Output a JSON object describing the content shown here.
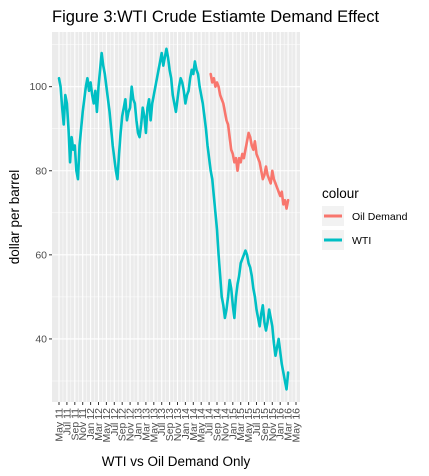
{
  "chart_data": {
    "type": "line",
    "title": "Figure 3:WTI Crude Estiamte Demand Effect",
    "xlabel": "WTI vs Oil Demand Only",
    "ylabel": "dollar per barrel",
    "ylim": [
      25,
      113
    ],
    "yticks": [
      40,
      60,
      80,
      100
    ],
    "grid": true,
    "legend_position": "right",
    "x_tick_labels": [
      "May 11",
      "Jul 11",
      "Sep 11",
      "Nov 11",
      "Jan 12",
      "Mar 12",
      "May 12",
      "Jul 12",
      "Sep 12",
      "Nov 12",
      "Jan 13",
      "Mar 13",
      "May 13",
      "Jul 13",
      "Sep 13",
      "Nov 13",
      "Jan 14",
      "Mar 14",
      "May 14",
      "Jul 14",
      "Sep 14",
      "Nov 14",
      "Jan 15",
      "Mar 15",
      "May 15",
      "Jul 15",
      "Sep 15",
      "Nov 15",
      "Jan 16",
      "Mar 16",
      "May 16"
    ],
    "legend": {
      "title": "colour",
      "entries": [
        {
          "label": "Oil Demand",
          "color": "#F8766D"
        },
        {
          "label": "WTI",
          "color": "#00BFC4"
        }
      ]
    },
    "series": [
      {
        "name": "WTI",
        "color": "#00BFC4",
        "x_index": [
          0,
          0.2,
          0.4,
          0.6,
          0.8,
          1.0,
          1.2,
          1.4,
          1.6,
          1.8,
          2.0,
          2.2,
          2.4,
          2.6,
          2.8,
          3.0,
          3.2,
          3.4,
          3.6,
          3.8,
          4.0,
          4.2,
          4.4,
          4.6,
          4.8,
          5.0,
          5.2,
          5.4,
          5.6,
          5.8,
          6.0,
          6.2,
          6.4,
          6.6,
          6.8,
          7.0,
          7.2,
          7.4,
          7.6,
          7.8,
          8.0,
          8.2,
          8.4,
          8.6,
          8.8,
          9.0,
          9.2,
          9.4,
          9.6,
          9.8,
          10.0,
          10.2,
          10.4,
          10.6,
          10.8,
          11.0,
          11.2,
          11.4,
          11.6,
          11.8,
          12.0,
          12.2,
          12.4,
          12.6,
          12.8,
          13.0,
          13.2,
          13.4,
          13.6,
          13.8,
          14.0,
          14.2,
          14.4,
          14.6,
          14.8,
          15.0,
          15.2,
          15.4,
          15.6,
          15.8,
          16.0,
          16.2,
          16.4,
          16.6,
          16.8,
          17.0,
          17.2,
          17.4,
          17.6,
          17.8,
          18.0,
          18.2,
          18.4,
          18.6,
          18.8,
          19.0,
          19.2,
          19.4,
          19.6,
          19.8,
          20.0,
          20.2,
          20.4,
          20.6,
          20.8,
          21.0,
          21.2,
          21.4,
          21.6,
          21.8,
          22.0,
          22.2,
          22.4,
          22.6,
          22.8,
          23.0,
          23.2,
          23.4,
          23.6,
          23.8,
          24.0,
          24.2,
          24.4,
          24.6,
          24.8,
          25.0,
          25.2,
          25.4,
          25.6,
          25.8,
          26.0,
          26.2,
          26.4,
          26.6,
          26.8,
          27.0,
          27.2,
          27.4,
          27.6,
          27.8,
          28.0,
          28.2,
          28.4,
          28.6,
          28.8,
          29.0
        ],
        "values": [
          102,
          100,
          95,
          91,
          98,
          96,
          90,
          82,
          88,
          85,
          86,
          80,
          78,
          86,
          90,
          94,
          97,
          100,
          102,
          99,
          101,
          98,
          96,
          99,
          94,
          100,
          104,
          108,
          105,
          103,
          100,
          97,
          94,
          90,
          86,
          83,
          80,
          78,
          84,
          89,
          93,
          95,
          97,
          92,
          94,
          95,
          100,
          97,
          96,
          92,
          89,
          88,
          91,
          95,
          93,
          89,
          95,
          97,
          92,
          96,
          98,
          100,
          102,
          104,
          106,
          108,
          105,
          107,
          109,
          107,
          104,
          102,
          98,
          96,
          94,
          97,
          100,
          102,
          101,
          99,
          96,
          98,
          99,
          102,
          104,
          103,
          106,
          104,
          103,
          100,
          98,
          96,
          93,
          90,
          86,
          83,
          80,
          78,
          74,
          70,
          66,
          60,
          55,
          50,
          48,
          45,
          47,
          50,
          54,
          52,
          48,
          45,
          50,
          53,
          55,
          58,
          59,
          60,
          61,
          60,
          58,
          57,
          55,
          52,
          50,
          47,
          45,
          43,
          46,
          48,
          44,
          42,
          44,
          47,
          45,
          43,
          39,
          36,
          38,
          40,
          37,
          34,
          32,
          30,
          28,
          32
        ]
      },
      {
        "name": "Oil Demand",
        "color": "#F8766D",
        "x_index": [
          19.2,
          19.4,
          19.6,
          19.8,
          20.0,
          20.2,
          20.4,
          20.6,
          20.8,
          21.0,
          21.2,
          21.4,
          21.6,
          21.8,
          22.0,
          22.2,
          22.4,
          22.6,
          22.8,
          23.0,
          23.2,
          23.4,
          23.6,
          23.8,
          24.0,
          24.2,
          24.4,
          24.6,
          24.8,
          25.0,
          25.2,
          25.4,
          25.6,
          25.8,
          26.0,
          26.2,
          26.4,
          26.6,
          26.8,
          27.0,
          27.2,
          27.4,
          27.6,
          27.8,
          28.0,
          28.2,
          28.4,
          28.6,
          28.8,
          29.0
        ],
        "values": [
          103,
          101,
          102,
          100,
          101,
          100,
          98,
          97,
          96,
          94,
          92,
          91,
          88,
          85,
          84,
          82,
          83,
          80,
          83,
          82,
          84,
          83,
          85,
          87,
          89,
          88,
          86,
          85,
          87,
          84,
          83,
          82,
          80,
          78,
          79,
          81,
          79,
          78,
          77,
          80,
          78,
          77,
          76,
          75,
          74,
          75,
          72,
          73,
          71,
          73
        ]
      }
    ]
  }
}
